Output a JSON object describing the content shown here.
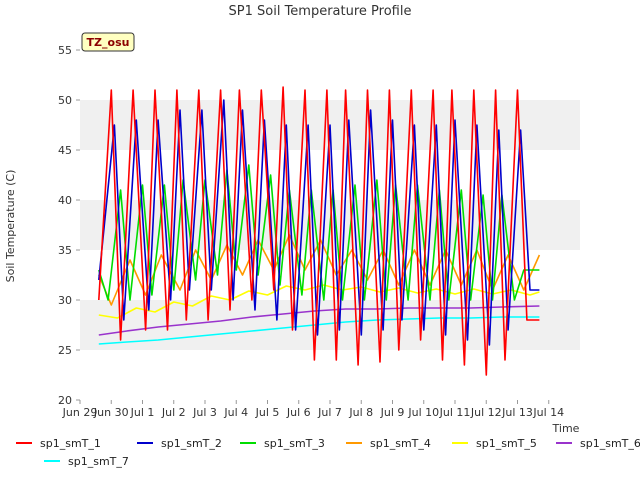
{
  "chart_data": {
    "type": "line",
    "title": "SP1 Soil Temperature Profile",
    "xlabel": "Time",
    "ylabel": "Soil Temperature (C)",
    "ylim": [
      20,
      55
    ],
    "yticks": [
      20,
      25,
      30,
      35,
      40,
      45,
      50,
      55
    ],
    "xlim": [
      0,
      16
    ],
    "xtick_labels": [
      "Jun 29",
      "Jun 30",
      "Jul 1",
      "Jul 2",
      "Jul 3",
      "Jul 4",
      "Jul 5",
      "Jul 6",
      "Jul 7",
      "Jul 8",
      "Jul 9",
      "Jul 10",
      "Jul 11",
      "Jul 12",
      "Jul 13",
      "Jul 14"
    ],
    "x_start_date": "2023-06-29",
    "x_end_date": "2023-07-14",
    "grid": "horizontal bands",
    "annotation": "TZ_osu",
    "legend_position": "bottom",
    "series": [
      {
        "name": "sp1_smT_1",
        "color": "#ff0000",
        "x": [
          0.6,
          1.0,
          1.3,
          1.7,
          2.1,
          2.4,
          2.8,
          3.1,
          3.4,
          3.8,
          4.1,
          4.5,
          4.8,
          5.1,
          5.5,
          5.8,
          6.2,
          6.5,
          6.8,
          7.2,
          7.5,
          7.9,
          8.2,
          8.5,
          8.9,
          9.2,
          9.6,
          9.9,
          10.2,
          10.6,
          10.9,
          11.3,
          11.6,
          11.9,
          12.3,
          12.6,
          13.0,
          13.3,
          13.6,
          14.0,
          14.3,
          14.7
        ],
        "y": [
          30,
          51,
          26,
          51,
          27,
          51,
          27,
          51,
          28,
          51,
          28,
          51,
          29,
          51,
          30,
          51,
          31,
          51.3,
          27,
          51,
          24,
          51,
          24,
          51,
          23.5,
          51,
          23.8,
          51,
          25,
          51,
          26,
          51,
          24,
          51,
          23.5,
          51,
          22.5,
          51,
          24,
          51,
          28,
          28
        ]
      },
      {
        "name": "sp1_smT_2",
        "color": "#0000cc",
        "x": [
          0.6,
          1.1,
          1.4,
          1.8,
          2.2,
          2.5,
          2.9,
          3.2,
          3.5,
          3.9,
          4.2,
          4.6,
          4.9,
          5.2,
          5.6,
          5.9,
          6.3,
          6.6,
          6.9,
          7.3,
          7.6,
          8.0,
          8.3,
          8.6,
          9.0,
          9.3,
          9.7,
          10.0,
          10.3,
          10.7,
          11.0,
          11.4,
          11.7,
          12.0,
          12.4,
          12.7,
          13.1,
          13.4,
          13.7,
          14.1,
          14.4,
          14.7
        ],
        "y": [
          32,
          47.5,
          28,
          48,
          29,
          48,
          30,
          49,
          31,
          49,
          31,
          50,
          30,
          49,
          29,
          48,
          28,
          47.5,
          27,
          47.5,
          26.5,
          47.5,
          27,
          48,
          26.5,
          49,
          27,
          48,
          28,
          47.5,
          27,
          47.5,
          26.5,
          48,
          26,
          47.5,
          25.5,
          47,
          27,
          47,
          31,
          31
        ]
      },
      {
        "name": "sp1_smT_3",
        "color": "#00dd00",
        "x": [
          0.6,
          0.9,
          1.3,
          1.6,
          2.0,
          2.3,
          2.7,
          3.0,
          3.3,
          3.7,
          4.0,
          4.4,
          4.7,
          5.0,
          5.4,
          5.7,
          6.1,
          6.4,
          6.7,
          7.1,
          7.4,
          7.8,
          8.1,
          8.4,
          8.8,
          9.1,
          9.5,
          9.8,
          10.1,
          10.5,
          10.8,
          11.2,
          11.5,
          11.8,
          12.2,
          12.5,
          12.9,
          13.2,
          13.5,
          13.9,
          14.2,
          14.7
        ],
        "y": [
          33,
          30,
          41,
          30,
          41.5,
          30.5,
          41.5,
          31,
          42,
          32,
          42,
          32.5,
          43,
          33,
          43.5,
          32.5,
          42.5,
          31.5,
          41,
          30.5,
          41,
          30,
          41,
          30,
          41.5,
          30,
          42,
          30,
          41.5,
          30,
          41.5,
          30,
          41,
          30,
          41,
          30,
          40.5,
          30,
          40.5,
          30,
          33,
          33
        ]
      },
      {
        "name": "sp1_smT_4",
        "color": "#ff9900",
        "x": [
          0.6,
          1.0,
          1.6,
          2.1,
          2.6,
          3.2,
          3.7,
          4.2,
          4.7,
          5.2,
          5.7,
          6.2,
          6.7,
          7.2,
          7.7,
          8.2,
          8.7,
          9.2,
          9.7,
          10.2,
          10.7,
          11.2,
          11.7,
          12.2,
          12.7,
          13.2,
          13.7,
          14.2,
          14.7
        ],
        "y": [
          32.5,
          29.5,
          34,
          30.5,
          34.5,
          31,
          35,
          32,
          35.5,
          32.5,
          36,
          33,
          36.5,
          33,
          36,
          32.5,
          35,
          32,
          35,
          31.5,
          35,
          31.5,
          35,
          31.5,
          35,
          31,
          34.5,
          31,
          34.5
        ]
      },
      {
        "name": "sp1_smT_5",
        "color": "#ffff00",
        "x": [
          0.6,
          1.2,
          1.8,
          2.4,
          3.0,
          3.6,
          4.2,
          4.8,
          5.4,
          6.0,
          6.6,
          7.2,
          7.8,
          8.4,
          9.0,
          9.6,
          10.2,
          10.8,
          11.4,
          12.0,
          12.6,
          13.2,
          13.8,
          14.4,
          14.7
        ],
        "y": [
          28.5,
          28.2,
          29.2,
          28.8,
          29.8,
          29.4,
          30.4,
          30.0,
          30.9,
          30.5,
          31.4,
          31.0,
          31.5,
          31.0,
          31.3,
          30.8,
          31.2,
          30.7,
          31.1,
          30.6,
          31.1,
          30.6,
          31.0,
          30.5,
          30.8
        ]
      },
      {
        "name": "sp1_smT_6",
        "color": "#9933cc",
        "x": [
          0.6,
          1.5,
          2.5,
          3.5,
          4.5,
          5.5,
          6.5,
          7.5,
          8.5,
          9.5,
          10.5,
          11.5,
          12.5,
          13.5,
          14.7
        ],
        "y": [
          26.5,
          26.9,
          27.3,
          27.6,
          27.9,
          28.3,
          28.6,
          28.9,
          29.1,
          29.1,
          29.2,
          29.2,
          29.2,
          29.3,
          29.4
        ]
      },
      {
        "name": "sp1_smT_7",
        "color": "#00ffff",
        "x": [
          0.6,
          1.5,
          2.5,
          3.5,
          4.5,
          5.5,
          6.5,
          7.5,
          8.5,
          9.5,
          10.5,
          11.5,
          12.5,
          13.5,
          14.7
        ],
        "y": [
          25.6,
          25.8,
          26.0,
          26.3,
          26.6,
          26.9,
          27.2,
          27.5,
          27.8,
          28.0,
          28.1,
          28.2,
          28.2,
          28.3,
          28.3
        ]
      }
    ]
  }
}
